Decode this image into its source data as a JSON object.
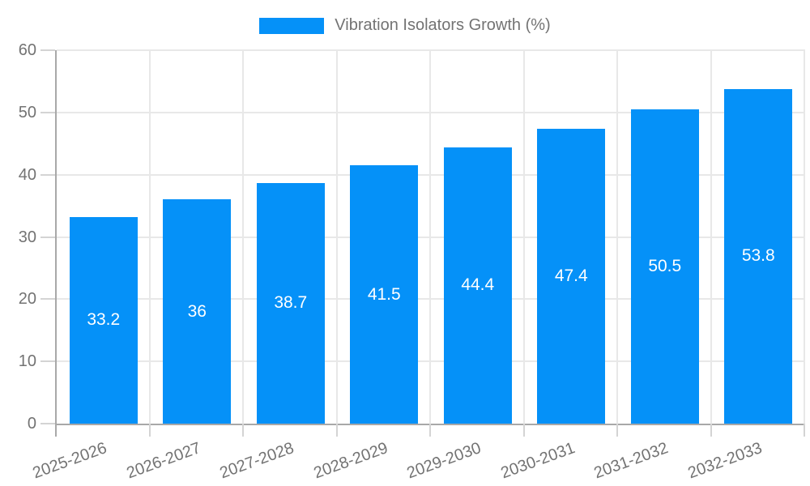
{
  "legend": {
    "label": "Vibration Isolators Growth (%)"
  },
  "colors": {
    "bar": "#0591F8",
    "grid": "#e8e8e8",
    "axis": "#a8a8a8",
    "tick": "#d4d4d4",
    "tick_label": "#737373",
    "legend_label": "#737373",
    "value_label": "#ffffff",
    "background": "#ffffff"
  },
  "chart_data": {
    "type": "bar",
    "title": "",
    "series_name": "Vibration Isolators Growth (%)",
    "categories": [
      "2025-2026",
      "2026-2027",
      "2027-2028",
      "2028-2029",
      "2029-2030",
      "2030-2031",
      "2031-2032",
      "2032-2033"
    ],
    "values": [
      33.2,
      36,
      38.7,
      41.5,
      44.4,
      47.4,
      50.5,
      53.8
    ],
    "xlabel": "",
    "ylabel": "",
    "ylim": [
      0,
      60
    ],
    "yticks": [
      0,
      10,
      20,
      30,
      40,
      50,
      60
    ],
    "grid": true,
    "vertical_gridlines": true,
    "legend_position": "top",
    "value_label_position": "inside-center",
    "x_tick_rotation_deg": -20
  }
}
